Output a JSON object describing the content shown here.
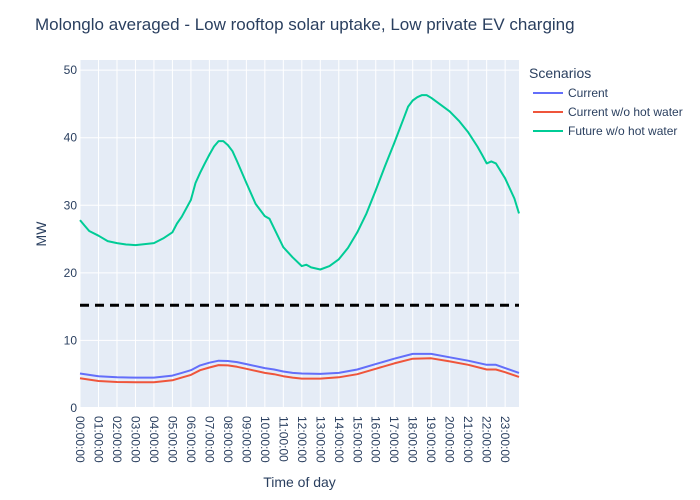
{
  "chart_data": {
    "type": "line",
    "title": "Molonglo averaged - Low rooftop solar uptake, Low private EV charging",
    "xlabel": "Time of day",
    "ylabel": "MW",
    "ylim": [
      0,
      51.5
    ],
    "xlim": [
      0,
      23.75
    ],
    "y_ticks": [
      0,
      10,
      20,
      30,
      40,
      50
    ],
    "x_ticks": [
      {
        "value": 0,
        "label": "00:00:00"
      },
      {
        "value": 1,
        "label": "01:00:00"
      },
      {
        "value": 2,
        "label": "02:00:00"
      },
      {
        "value": 3,
        "label": "03:00:00"
      },
      {
        "value": 4,
        "label": "04:00:00"
      },
      {
        "value": 5,
        "label": "05:00:00"
      },
      {
        "value": 6,
        "label": "06:00:00"
      },
      {
        "value": 7,
        "label": "07:00:00"
      },
      {
        "value": 8,
        "label": "08:00:00"
      },
      {
        "value": 9,
        "label": "09:00:00"
      },
      {
        "value": 10,
        "label": "10:00:00"
      },
      {
        "value": 11,
        "label": "11:00:00"
      },
      {
        "value": 12,
        "label": "12:00:00"
      },
      {
        "value": 13,
        "label": "13:00:00"
      },
      {
        "value": 14,
        "label": "14:00:00"
      },
      {
        "value": 15,
        "label": "15:00:00"
      },
      {
        "value": 16,
        "label": "16:00:00"
      },
      {
        "value": 17,
        "label": "17:00:00"
      },
      {
        "value": 18,
        "label": "18:00:00"
      },
      {
        "value": 19,
        "label": "19:00:00"
      },
      {
        "value": 20,
        "label": "20:00:00"
      },
      {
        "value": 21,
        "label": "21:00:00"
      },
      {
        "value": 22,
        "label": "22:00:00"
      },
      {
        "value": 23,
        "label": "23:00:00"
      }
    ],
    "grid": true,
    "legend": {
      "title": "Scenarios",
      "placement": "right"
    },
    "reference_line": {
      "y": 15.2,
      "style": "dashed",
      "color": "#000000"
    },
    "series": [
      {
        "name": "Current",
        "color": "#636efa",
        "points": [
          [
            0,
            5.1
          ],
          [
            0.5,
            4.9
          ],
          [
            1,
            4.7
          ],
          [
            2,
            4.55
          ],
          [
            3,
            4.5
          ],
          [
            4,
            4.5
          ],
          [
            5,
            4.8
          ],
          [
            5.5,
            5.2
          ],
          [
            6,
            5.6
          ],
          [
            6.5,
            6.3
          ],
          [
            7,
            6.7
          ],
          [
            7.5,
            7.0
          ],
          [
            8,
            6.95
          ],
          [
            8.5,
            6.8
          ],
          [
            9,
            6.5
          ],
          [
            10,
            5.9
          ],
          [
            10.5,
            5.7
          ],
          [
            11,
            5.4
          ],
          [
            11.5,
            5.2
          ],
          [
            12,
            5.1
          ],
          [
            13,
            5.05
          ],
          [
            14,
            5.2
          ],
          [
            15,
            5.7
          ],
          [
            16,
            6.5
          ],
          [
            17,
            7.3
          ],
          [
            18,
            8.0
          ],
          [
            19,
            8.0
          ],
          [
            20,
            7.5
          ],
          [
            21,
            7.0
          ],
          [
            22,
            6.4
          ],
          [
            22.5,
            6.4
          ],
          [
            23,
            5.9
          ],
          [
            23.75,
            5.2
          ]
        ]
      },
      {
        "name": "Current w/o hot water",
        "color": "#ef553b",
        "points": [
          [
            0,
            4.4
          ],
          [
            0.5,
            4.2
          ],
          [
            1,
            4.0
          ],
          [
            2,
            3.85
          ],
          [
            3,
            3.8
          ],
          [
            4,
            3.8
          ],
          [
            5,
            4.1
          ],
          [
            5.5,
            4.5
          ],
          [
            6,
            4.9
          ],
          [
            6.5,
            5.6
          ],
          [
            7,
            6.0
          ],
          [
            7.5,
            6.35
          ],
          [
            8,
            6.3
          ],
          [
            8.5,
            6.1
          ],
          [
            9,
            5.8
          ],
          [
            10,
            5.2
          ],
          [
            10.5,
            5.0
          ],
          [
            11,
            4.7
          ],
          [
            11.5,
            4.5
          ],
          [
            12,
            4.35
          ],
          [
            13,
            4.35
          ],
          [
            14,
            4.55
          ],
          [
            15,
            5.0
          ],
          [
            16,
            5.8
          ],
          [
            17,
            6.6
          ],
          [
            18,
            7.3
          ],
          [
            19,
            7.35
          ],
          [
            20,
            6.9
          ],
          [
            21,
            6.4
          ],
          [
            22,
            5.7
          ],
          [
            22.5,
            5.7
          ],
          [
            23,
            5.3
          ],
          [
            23.75,
            4.6
          ]
        ]
      },
      {
        "name": "Future w/o hot water",
        "color": "#00cc96",
        "points": [
          [
            0,
            27.8
          ],
          [
            0.25,
            27.0
          ],
          [
            0.5,
            26.2
          ],
          [
            1,
            25.5
          ],
          [
            1.5,
            24.7
          ],
          [
            2,
            24.4
          ],
          [
            2.5,
            24.2
          ],
          [
            3,
            24.1
          ],
          [
            3.5,
            24.25
          ],
          [
            4,
            24.4
          ],
          [
            4.5,
            25.1
          ],
          [
            5,
            26.0
          ],
          [
            5.25,
            27.3
          ],
          [
            5.5,
            28.3
          ],
          [
            6,
            30.8
          ],
          [
            6.25,
            33.3
          ],
          [
            6.5,
            34.8
          ],
          [
            6.75,
            36.2
          ],
          [
            7,
            37.5
          ],
          [
            7.25,
            38.7
          ],
          [
            7.5,
            39.5
          ],
          [
            7.75,
            39.5
          ],
          [
            8,
            38.9
          ],
          [
            8.25,
            38.0
          ],
          [
            8.5,
            36.5
          ],
          [
            9,
            33.3
          ],
          [
            9.5,
            30.2
          ],
          [
            10,
            28.4
          ],
          [
            10.25,
            28.0
          ],
          [
            10.5,
            26.6
          ],
          [
            11,
            23.8
          ],
          [
            11.5,
            22.3
          ],
          [
            12,
            21.0
          ],
          [
            12.25,
            21.2
          ],
          [
            12.5,
            20.8
          ],
          [
            13,
            20.5
          ],
          [
            13.5,
            21.0
          ],
          [
            14,
            22.0
          ],
          [
            14.5,
            23.7
          ],
          [
            15,
            26.0
          ],
          [
            15.5,
            28.8
          ],
          [
            16,
            32.2
          ],
          [
            16.5,
            35.8
          ],
          [
            17,
            39.2
          ],
          [
            17.5,
            42.8
          ],
          [
            17.75,
            44.6
          ],
          [
            18,
            45.5
          ],
          [
            18.25,
            46.0
          ],
          [
            18.5,
            46.3
          ],
          [
            18.75,
            46.3
          ],
          [
            19,
            45.9
          ],
          [
            19.5,
            44.9
          ],
          [
            20,
            43.9
          ],
          [
            20.5,
            42.5
          ],
          [
            21,
            40.8
          ],
          [
            21.5,
            38.7
          ],
          [
            21.75,
            37.5
          ],
          [
            22,
            36.2
          ],
          [
            22.25,
            36.5
          ],
          [
            22.5,
            36.2
          ],
          [
            23,
            34.0
          ],
          [
            23.5,
            31.0
          ],
          [
            23.75,
            28.8
          ]
        ]
      }
    ]
  }
}
